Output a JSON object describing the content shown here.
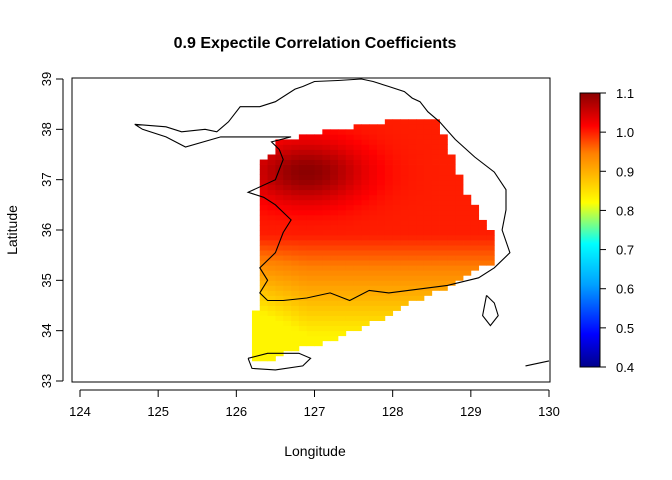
{
  "chart_data": {
    "type": "heatmap",
    "title": "0.9 Expectile Correlation Coefficients",
    "xlabel": "Longitude",
    "ylabel": "Latitude",
    "xlim": [
      124,
      130
    ],
    "ylim": [
      33,
      39
    ],
    "x_ticks": [
      "124",
      "125",
      "126",
      "127",
      "128",
      "129",
      "130"
    ],
    "y_ticks": [
      "33",
      "34",
      "35",
      "36",
      "37",
      "38",
      "39"
    ],
    "grid": false,
    "grid_step": 0.1,
    "colorbar": {
      "range": [
        0.4,
        1.1
      ],
      "ticks": [
        "0.4",
        "0.5",
        "0.6",
        "0.7",
        "0.8",
        "0.9",
        "1.0",
        "1.1"
      ],
      "colors": [
        "#00008b",
        "#0000ff",
        "#00ffff",
        "#ffff00",
        "#ff0000",
        "#8b0000"
      ],
      "placement": "right"
    },
    "field": {
      "description": "gridded correlation surface over South Korea",
      "region_polygon": [
        [
          126.45,
          37.75
        ],
        [
          126.45,
          37.55
        ],
        [
          126.3,
          37.4
        ],
        [
          126.3,
          35.75
        ],
        [
          126.25,
          35.3
        ],
        [
          126.25,
          34.4
        ],
        [
          126.2,
          33.45
        ],
        [
          126.4,
          33.4
        ],
        [
          126.8,
          33.65
        ],
        [
          127.3,
          33.85
        ],
        [
          127.8,
          34.2
        ],
        [
          128.3,
          34.6
        ],
        [
          128.8,
          34.95
        ],
        [
          129.25,
          35.35
        ],
        [
          129.3,
          35.85
        ],
        [
          129.15,
          36.2
        ],
        [
          128.95,
          36.7
        ],
        [
          128.8,
          37.25
        ],
        [
          128.7,
          37.75
        ],
        [
          128.55,
          38.25
        ],
        [
          128.3,
          38.2
        ],
        [
          127.9,
          38.15
        ],
        [
          127.5,
          38.05
        ],
        [
          127.1,
          37.95
        ],
        [
          126.8,
          37.85
        ]
      ],
      "peak": {
        "lon": 126.9,
        "lat": 37.15,
        "value": 1.1
      },
      "values_note": "high values (1.0–1.1) in the north near Seoul, decreasing toward ~0.85 at the southwestern coast"
    }
  },
  "coastline": {
    "korea_outline": [
      [
        124.7,
        38.1
      ],
      [
        125.1,
        38.05
      ],
      [
        125.3,
        37.95
      ],
      [
        125.6,
        38.0
      ],
      [
        125.75,
        37.95
      ],
      [
        125.9,
        38.15
      ],
      [
        126.05,
        38.45
      ],
      [
        126.3,
        38.45
      ],
      [
        126.5,
        38.55
      ],
      [
        126.75,
        38.8
      ],
      [
        126.85,
        38.85
      ],
      [
        127.0,
        38.95
      ],
      [
        127.3,
        38.97
      ],
      [
        127.6,
        39.0
      ],
      [
        127.75,
        38.95
      ],
      [
        127.95,
        38.85
      ],
      [
        128.15,
        38.75
      ],
      [
        128.25,
        38.62
      ],
      [
        128.35,
        38.55
      ],
      [
        128.45,
        38.35
      ],
      [
        128.6,
        38.15
      ],
      [
        128.8,
        37.8
      ],
      [
        129.05,
        37.45
      ],
      [
        129.3,
        37.15
      ],
      [
        129.45,
        36.8
      ],
      [
        129.45,
        36.4
      ],
      [
        129.4,
        36.0
      ],
      [
        129.5,
        35.55
      ],
      [
        129.3,
        35.25
      ],
      [
        129.1,
        35.05
      ],
      [
        128.7,
        34.9
      ],
      [
        128.45,
        34.85
      ],
      [
        128.2,
        34.8
      ],
      [
        127.95,
        34.75
      ],
      [
        127.7,
        34.8
      ],
      [
        127.45,
        34.6
      ],
      [
        127.2,
        34.75
      ],
      [
        126.9,
        34.65
      ],
      [
        126.6,
        34.6
      ],
      [
        126.4,
        34.6
      ],
      [
        126.3,
        34.75
      ],
      [
        126.4,
        35.0
      ],
      [
        126.3,
        35.25
      ],
      [
        126.5,
        35.55
      ],
      [
        126.6,
        35.95
      ],
      [
        126.7,
        36.2
      ],
      [
        126.5,
        36.5
      ],
      [
        126.35,
        36.65
      ],
      [
        126.15,
        36.75
      ],
      [
        126.5,
        37.0
      ],
      [
        126.6,
        37.4
      ],
      [
        126.55,
        37.6
      ],
      [
        126.45,
        37.75
      ],
      [
        126.7,
        37.85
      ],
      [
        126.2,
        37.85
      ],
      [
        125.8,
        37.85
      ],
      [
        125.35,
        37.65
      ],
      [
        125.1,
        37.85
      ],
      [
        124.8,
        38.0
      ],
      [
        124.7,
        38.1
      ]
    ],
    "jeju": [
      [
        126.15,
        33.45
      ],
      [
        126.4,
        33.55
      ],
      [
        126.8,
        33.55
      ],
      [
        126.95,
        33.45
      ],
      [
        126.85,
        33.3
      ],
      [
        126.5,
        33.22
      ],
      [
        126.2,
        33.25
      ],
      [
        126.15,
        33.45
      ]
    ],
    "tsushima": [
      [
        129.2,
        34.7
      ],
      [
        129.3,
        34.55
      ],
      [
        129.35,
        34.3
      ],
      [
        129.25,
        34.1
      ],
      [
        129.15,
        34.3
      ],
      [
        129.2,
        34.7
      ]
    ],
    "island_small": [
      [
        129.7,
        33.3
      ],
      [
        130,
        33.4
      ]
    ]
  }
}
